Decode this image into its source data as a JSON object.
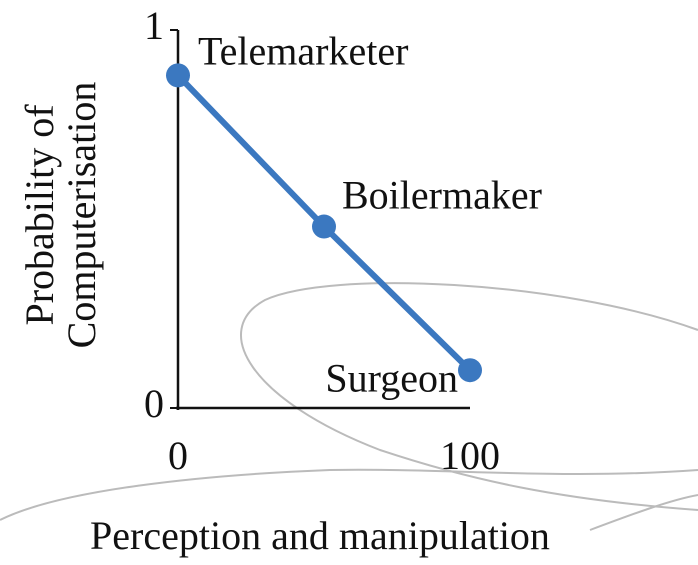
{
  "chart_data": {
    "type": "line",
    "xlabel": "Perception and manipulation",
    "ylabel": [
      "Probability of",
      "Computerisation"
    ],
    "x": [
      0,
      50,
      100
    ],
    "series": [
      {
        "name": null,
        "color": "#3b78c0",
        "values": [
          0.88,
          0.48,
          0.1
        ]
      }
    ],
    "point_labels": [
      "Telemarketer",
      "Boilermaker",
      "Surgeon"
    ],
    "xlim": [
      0,
      100
    ],
    "xticks": [
      0,
      100
    ],
    "ylim": [
      0,
      1
    ],
    "yticks": [
      0,
      1
    ]
  }
}
